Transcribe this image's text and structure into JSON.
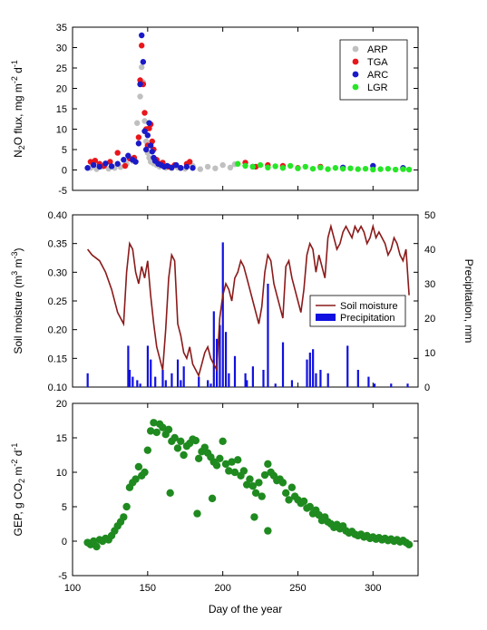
{
  "chart_data": [
    {
      "type": "scatter",
      "title": "",
      "xlabel": "",
      "ylabel": "N2O flux, mg m-2 d-1",
      "ylabel_parts": [
        "N",
        "2",
        "O flux, mg m",
        "-2",
        " d",
        "-1"
      ],
      "xlim": [
        100,
        330
      ],
      "ylim": [
        -5,
        35
      ],
      "yticks": [
        -5,
        0,
        5,
        10,
        15,
        20,
        25,
        30,
        35
      ],
      "ytick_labels": [
        "-5",
        "0",
        "5",
        "10",
        "15",
        "20",
        "25",
        "30",
        "35"
      ],
      "legend_position": "top-right",
      "series": [
        {
          "name": "ARP",
          "color": "#c0c0c0",
          "x": [
            112,
            116,
            120,
            124,
            128,
            132,
            136,
            140,
            143,
            145,
            146,
            147,
            148,
            149,
            150,
            151,
            152,
            154,
            156,
            158,
            162,
            166,
            170,
            175,
            180,
            185,
            190,
            195,
            200,
            205,
            208
          ],
          "y": [
            0.5,
            0.2,
            0.8,
            0.3,
            0.5,
            0.7,
            1.5,
            2.2,
            11.5,
            18.0,
            25.2,
            21.5,
            12.0,
            7.0,
            4.2,
            3.0,
            2.0,
            1.6,
            1.2,
            0.8,
            0.5,
            0.4,
            0.6,
            0.3,
            1.0,
            0.2,
            0.8,
            0.4,
            1.2,
            0.6,
            1.4
          ]
        },
        {
          "name": "TGA",
          "color": "#e8161b",
          "x": [
            112,
            115,
            118,
            121,
            125,
            130,
            135,
            138,
            141,
            144,
            145,
            146,
            147,
            148,
            149,
            150,
            151,
            152,
            153,
            154,
            156,
            158,
            160,
            164,
            168,
            172,
            176,
            178,
            215,
            222,
            230,
            240,
            250,
            265
          ],
          "y": [
            2.0,
            2.3,
            1.5,
            1.0,
            2.0,
            4.2,
            1.0,
            2.8,
            3.0,
            8.0,
            22.0,
            30.5,
            21.0,
            14.0,
            10.0,
            6.0,
            10.2,
            11.2,
            7.0,
            5.0,
            2.5,
            1.5,
            1.8,
            0.8,
            1.2,
            0.5,
            1.5,
            2.0,
            1.8,
            0.8,
            1.2,
            1.0,
            0.5,
            0.8
          ]
        },
        {
          "name": "ARC",
          "color": "#1a1ac8",
          "x": [
            110,
            114,
            118,
            122,
            126,
            130,
            134,
            137,
            140,
            142,
            144,
            145,
            146,
            147,
            148,
            149,
            150,
            151,
            152,
            153,
            154,
            155,
            157,
            159,
            161,
            163,
            166,
            169,
            172,
            176,
            180,
            220,
            280,
            300,
            320
          ],
          "y": [
            0.5,
            1.2,
            0.8,
            1.6,
            0.9,
            1.5,
            2.5,
            3.5,
            2.5,
            2.0,
            6.5,
            21.0,
            33.0,
            26.5,
            9.5,
            5.0,
            8.5,
            11.5,
            6.0,
            4.5,
            3.0,
            2.2,
            1.5,
            1.2,
            0.8,
            1.0,
            0.6,
            1.2,
            0.5,
            0.8,
            0.5,
            0.8,
            0.6,
            1.0,
            0.5
          ]
        },
        {
          "name": "LGR",
          "color": "#26e626",
          "x": [
            210,
            215,
            220,
            225,
            230,
            235,
            240,
            245,
            250,
            255,
            260,
            265,
            270,
            275,
            280,
            285,
            290,
            295,
            300,
            305,
            310,
            315,
            320,
            324
          ],
          "y": [
            1.5,
            1.0,
            0.8,
            1.2,
            0.6,
            0.9,
            0.5,
            1.0,
            0.4,
            0.8,
            0.3,
            0.6,
            0.2,
            0.5,
            0.3,
            0.4,
            0.2,
            0.3,
            0.1,
            0.2,
            0.3,
            0.1,
            0.2,
            0.1
          ]
        }
      ]
    },
    {
      "type": "line",
      "title": "",
      "xlabel": "",
      "ylabel": "Soil moisture (m3 m-3)",
      "ylabel_parts": [
        "Soil moisture (m",
        "3",
        " m",
        "-3",
        ")"
      ],
      "y2label": "Precipitation, mm",
      "xlim": [
        100,
        330
      ],
      "ylim": [
        0.1,
        0.4
      ],
      "yticks": [
        0.1,
        0.15,
        0.2,
        0.25,
        0.3,
        0.35,
        0.4
      ],
      "ytick_labels": [
        "0.10",
        "0.15",
        "0.20",
        "0.25",
        "0.30",
        "0.35",
        "0.40"
      ],
      "y2lim": [
        0,
        50
      ],
      "y2ticks": [
        0,
        10,
        20,
        30,
        40,
        50
      ],
      "y2tick_labels": [
        "0",
        "10",
        "20",
        "30",
        "40",
        "50"
      ],
      "legend_position": "right",
      "series": [
        {
          "name": "Soil moisture",
          "color": "#8b1a1a",
          "x": [
            110,
            113,
            118,
            122,
            126,
            130,
            134,
            136,
            138,
            140,
            142,
            144,
            146,
            148,
            150,
            152,
            154,
            156,
            158,
            160,
            162,
            164,
            166,
            168,
            170,
            172,
            174,
            176,
            178,
            180,
            184,
            186,
            188,
            190,
            192,
            194,
            196,
            198,
            200,
            202,
            204,
            206,
            208,
            210,
            212,
            214,
            216,
            218,
            220,
            222,
            224,
            226,
            228,
            230,
            232,
            234,
            236,
            238,
            240,
            242,
            244,
            246,
            248,
            250,
            252,
            254,
            256,
            258,
            260,
            262,
            264,
            266,
            268,
            270,
            272,
            274,
            276,
            278,
            280,
            282,
            284,
            286,
            288,
            290,
            292,
            294,
            296,
            298,
            300,
            302,
            304,
            306,
            308,
            310,
            312,
            314,
            316,
            318,
            320,
            322,
            324
          ],
          "y": [
            0.34,
            0.33,
            0.32,
            0.3,
            0.27,
            0.23,
            0.21,
            0.3,
            0.35,
            0.34,
            0.3,
            0.28,
            0.31,
            0.29,
            0.32,
            0.26,
            0.21,
            0.17,
            0.15,
            0.13,
            0.2,
            0.29,
            0.33,
            0.32,
            0.21,
            0.19,
            0.16,
            0.15,
            0.17,
            0.14,
            0.12,
            0.14,
            0.16,
            0.17,
            0.15,
            0.14,
            0.13,
            0.22,
            0.26,
            0.28,
            0.27,
            0.25,
            0.29,
            0.3,
            0.32,
            0.31,
            0.29,
            0.27,
            0.25,
            0.23,
            0.21,
            0.24,
            0.3,
            0.33,
            0.32,
            0.28,
            0.26,
            0.24,
            0.22,
            0.31,
            0.32,
            0.29,
            0.27,
            0.25,
            0.23,
            0.27,
            0.33,
            0.35,
            0.34,
            0.3,
            0.33,
            0.31,
            0.29,
            0.36,
            0.38,
            0.36,
            0.34,
            0.35,
            0.37,
            0.38,
            0.37,
            0.36,
            0.38,
            0.37,
            0.38,
            0.37,
            0.35,
            0.36,
            0.38,
            0.36,
            0.37,
            0.36,
            0.35,
            0.33,
            0.34,
            0.36,
            0.35,
            0.33,
            0.32,
            0.34,
            0.26
          ]
        },
        {
          "name": "Precipitation",
          "color": "#1010e0",
          "axis": "right",
          "x": [
            110,
            137,
            138,
            140,
            143,
            145,
            150,
            152,
            155,
            160,
            162,
            166,
            170,
            172,
            174,
            184,
            190,
            192,
            194,
            196,
            198,
            200,
            202,
            204,
            208,
            215,
            216,
            220,
            227,
            230,
            235,
            240,
            246,
            256,
            258,
            260,
            262,
            265,
            270,
            283,
            290,
            297,
            301,
            312,
            323
          ],
          "y": [
            4,
            12,
            5,
            3,
            2,
            1,
            12,
            8,
            3,
            5,
            2,
            4,
            8,
            2,
            6,
            3,
            2,
            1,
            22,
            14,
            18,
            42,
            16,
            4,
            9,
            4,
            2,
            6,
            5,
            30,
            1,
            13,
            2,
            8,
            10,
            11,
            4,
            5,
            4,
            12,
            5,
            3,
            1,
            1,
            1
          ]
        }
      ]
    },
    {
      "type": "scatter",
      "title": "",
      "xlabel": "Day of the year",
      "ylabel": "GEP, g CO2 m-2 d-1",
      "ylabel_parts": [
        "GEP, g CO",
        "2",
        " m",
        "-2",
        " d",
        "-1"
      ],
      "xlim": [
        100,
        330
      ],
      "ylim": [
        -5,
        20
      ],
      "xticks": [
        100,
        150,
        200,
        250,
        300
      ],
      "xtick_labels": [
        "100",
        "150",
        "200",
        "250",
        "300"
      ],
      "yticks": [
        -5,
        0,
        5,
        10,
        15,
        20
      ],
      "ytick_labels": [
        "-5",
        "0",
        "5",
        "10",
        "15",
        "20"
      ],
      "series": [
        {
          "name": "GEP",
          "color": "#1f8a1f",
          "x": [
            110,
            112,
            114,
            116,
            118,
            120,
            122,
            124,
            126,
            128,
            130,
            132,
            134,
            136,
            138,
            140,
            142,
            144,
            146,
            148,
            150,
            152,
            154,
            156,
            158,
            160,
            162,
            164,
            166,
            168,
            170,
            172,
            174,
            176,
            178,
            180,
            182,
            184,
            186,
            188,
            190,
            192,
            194,
            196,
            198,
            200,
            202,
            204,
            206,
            208,
            210,
            212,
            214,
            216,
            218,
            220,
            222,
            224,
            226,
            228,
            230,
            232,
            234,
            236,
            238,
            240,
            242,
            244,
            246,
            248,
            250,
            252,
            254,
            256,
            258,
            260,
            262,
            264,
            266,
            268,
            270,
            272,
            274,
            276,
            278,
            280,
            282,
            284,
            286,
            288,
            290,
            292,
            294,
            296,
            298,
            300,
            302,
            304,
            306,
            308,
            310,
            312,
            314,
            316,
            318,
            320,
            322,
            324,
            165,
            183,
            193,
            221,
            230
          ],
          "y": [
            -0.2,
            -0.5,
            0.0,
            -0.8,
            0.2,
            0.0,
            0.4,
            0.2,
            0.8,
            1.5,
            2.2,
            2.8,
            3.5,
            5.0,
            7.8,
            8.5,
            9.0,
            10.8,
            9.5,
            10.0,
            13.2,
            16.0,
            17.2,
            15.8,
            17.0,
            16.5,
            15.5,
            16.2,
            14.5,
            15.0,
            13.5,
            14.5,
            12.5,
            13.8,
            14.2,
            14.8,
            14.6,
            12.0,
            13.0,
            13.6,
            12.8,
            12.2,
            11.5,
            11.0,
            12.0,
            14.5,
            11.2,
            10.2,
            11.5,
            10.0,
            11.8,
            9.5,
            10.2,
            8.2,
            9.0,
            8.0,
            7.0,
            8.5,
            6.5,
            9.6,
            11.2,
            10.0,
            9.5,
            8.8,
            9.0,
            8.5,
            7.0,
            6.0,
            7.8,
            6.5,
            6.0,
            5.5,
            5.8,
            4.8,
            5.0,
            4.0,
            4.5,
            3.8,
            3.0,
            3.5,
            2.8,
            2.5,
            2.0,
            2.4,
            1.8,
            2.2,
            1.5,
            1.2,
            1.4,
            1.0,
            0.8,
            1.0,
            0.6,
            0.8,
            0.4,
            0.6,
            0.3,
            0.5,
            0.2,
            0.4,
            0.1,
            0.3,
            0.0,
            0.2,
            -0.1,
            0.1,
            -0.2,
            -0.5,
            7.0,
            4.0,
            6.2,
            3.5,
            1.5
          ]
        }
      ]
    }
  ]
}
